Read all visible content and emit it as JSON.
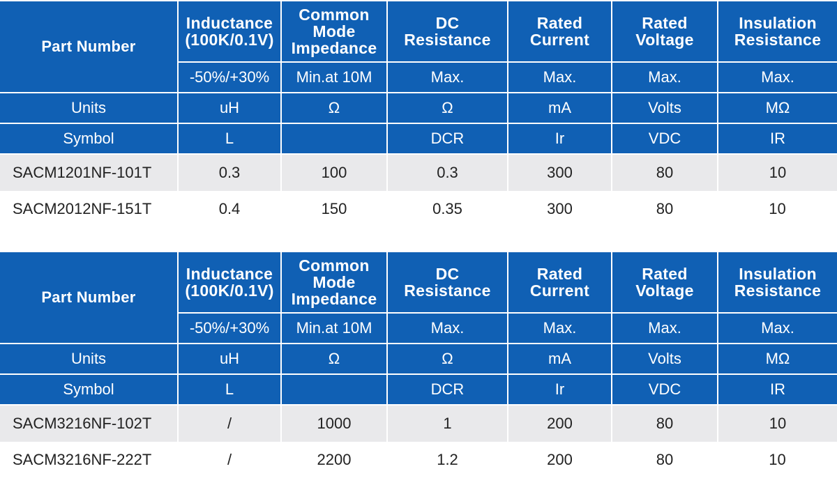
{
  "header": {
    "part_number": "Part Number",
    "columns": [
      {
        "title_lines": [
          "Inductance",
          "(100K/0.1V)"
        ],
        "spec": "-50%/+30%",
        "unit": "uH",
        "symbol": "L"
      },
      {
        "title_lines": [
          "Common",
          "Mode",
          "Impedance"
        ],
        "spec": "Min.at 10M",
        "unit": "Ω",
        "symbol": ""
      },
      {
        "title_lines": [
          "DC",
          "Resistance"
        ],
        "spec": "Max.",
        "unit": "Ω",
        "symbol": "DCR"
      },
      {
        "title_lines": [
          "Rated",
          "Current"
        ],
        "spec": "Max.",
        "unit": "mA",
        "symbol": "Ir"
      },
      {
        "title_lines": [
          "Rated",
          "Voltage"
        ],
        "spec": "Max.",
        "unit": "Volts",
        "symbol": "VDC"
      },
      {
        "title_lines": [
          "Insulation",
          "Resistance"
        ],
        "spec": "Max.",
        "unit": "MΩ",
        "symbol": "IR"
      }
    ],
    "units_label": "Units",
    "symbol_label": "Symbol"
  },
  "tables": [
    {
      "rows": [
        {
          "part": "SACM1201NF-101T",
          "values": [
            "0.3",
            "100",
            "0.3",
            "300",
            "80",
            "10"
          ]
        },
        {
          "part": "SACM2012NF-151T",
          "values": [
            "0.4",
            "150",
            "0.35",
            "300",
            "80",
            "10"
          ]
        }
      ]
    },
    {
      "rows": [
        {
          "part": "SACM3216NF-102T",
          "values": [
            "/",
            "1000",
            "1",
            "200",
            "80",
            "10"
          ]
        },
        {
          "part": "SACM3216NF-222T",
          "values": [
            "/",
            "2200",
            "1.2",
            "200",
            "80",
            "10"
          ]
        }
      ]
    }
  ],
  "colors": {
    "header_blue": "#1060b4",
    "shade_gray": "#e9e9eb",
    "text_dark": "#222222"
  }
}
